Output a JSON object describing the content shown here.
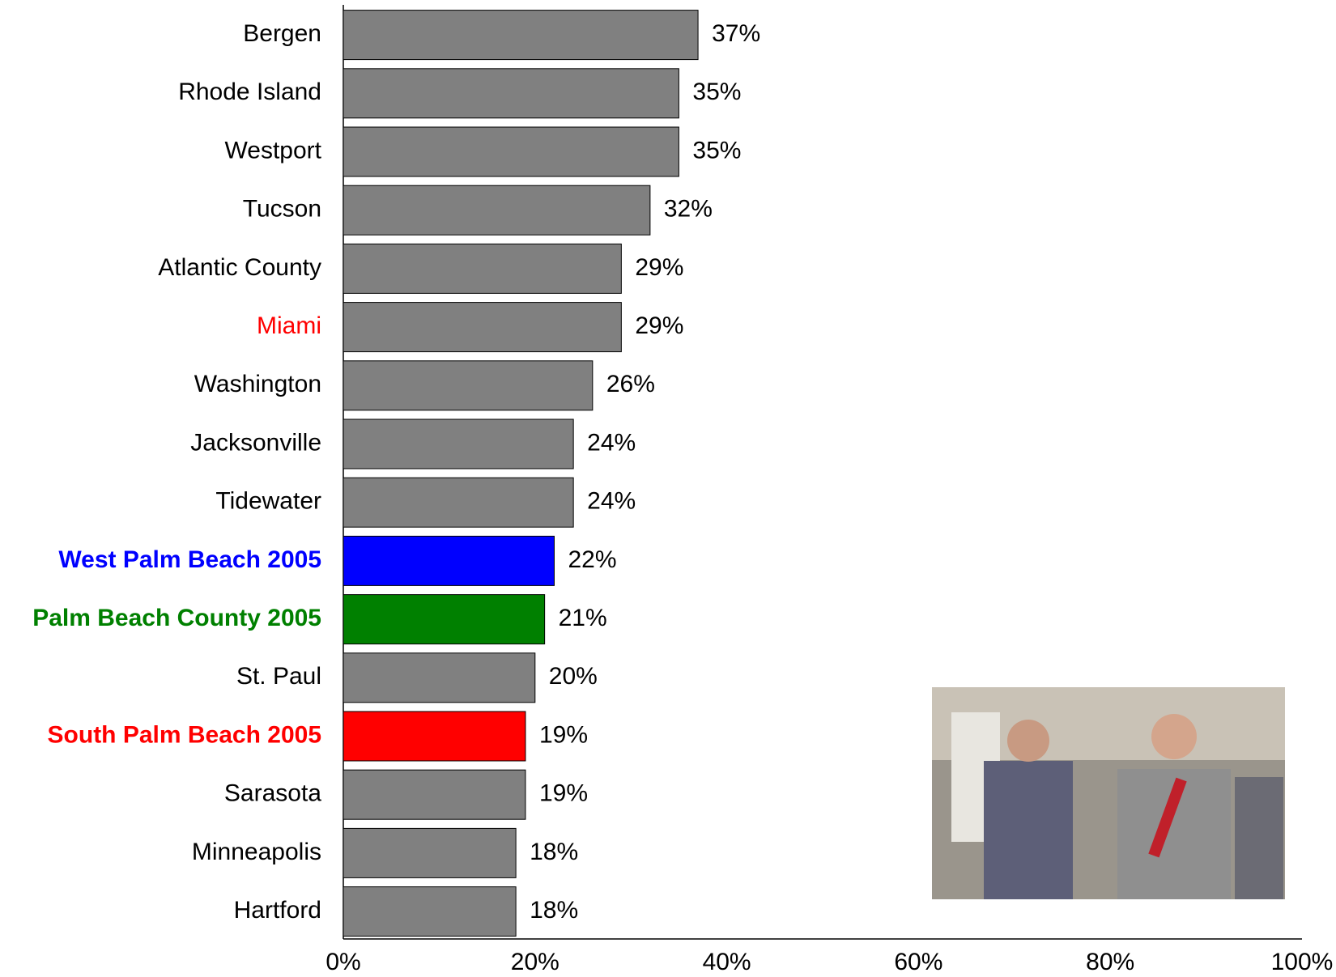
{
  "chart_data": {
    "type": "bar",
    "orientation": "horizontal",
    "categories": [
      "Bergen",
      "Rhode Island",
      "Westport",
      "Tucson",
      "Atlantic County",
      "Miami",
      "Washington",
      "Jacksonville",
      "Tidewater",
      "West Palm Beach 2005",
      "Palm Beach County 2005",
      "St. Paul",
      "South Palm Beach 2005",
      "Sarasota",
      "Minneapolis",
      "Hartford"
    ],
    "values": [
      37,
      35,
      35,
      32,
      29,
      29,
      26,
      24,
      24,
      22,
      21,
      20,
      19,
      19,
      18,
      18
    ],
    "value_labels": [
      "37%",
      "35%",
      "35%",
      "32%",
      "29%",
      "29%",
      "26%",
      "24%",
      "24%",
      "22%",
      "21%",
      "20%",
      "19%",
      "19%",
      "18%",
      "18%"
    ],
    "colors": [
      "#808080",
      "#808080",
      "#808080",
      "#808080",
      "#808080",
      "#808080",
      "#808080",
      "#808080",
      "#808080",
      "#0000ff",
      "#008000",
      "#808080",
      "#ff0000",
      "#808080",
      "#808080",
      "#808080"
    ],
    "label_colors": [
      "#000000",
      "#000000",
      "#000000",
      "#000000",
      "#000000",
      "#ff0000",
      "#000000",
      "#000000",
      "#000000",
      "#0000ff",
      "#008000",
      "#000000",
      "#ff0000",
      "#000000",
      "#000000",
      "#000000"
    ],
    "label_bold": [
      false,
      false,
      false,
      false,
      false,
      false,
      false,
      false,
      false,
      true,
      true,
      false,
      true,
      false,
      false,
      false
    ],
    "xlim": [
      0,
      100
    ],
    "xticks": [
      {
        "value": 0,
        "label": "0%"
      },
      {
        "value": 20,
        "label": "20%"
      },
      {
        "value": 40,
        "label": "40%"
      },
      {
        "value": 60,
        "label": "60%"
      },
      {
        "value": 80,
        "label": "80%"
      },
      {
        "value": 100,
        "label": "100%"
      }
    ],
    "grid": false
  }
}
